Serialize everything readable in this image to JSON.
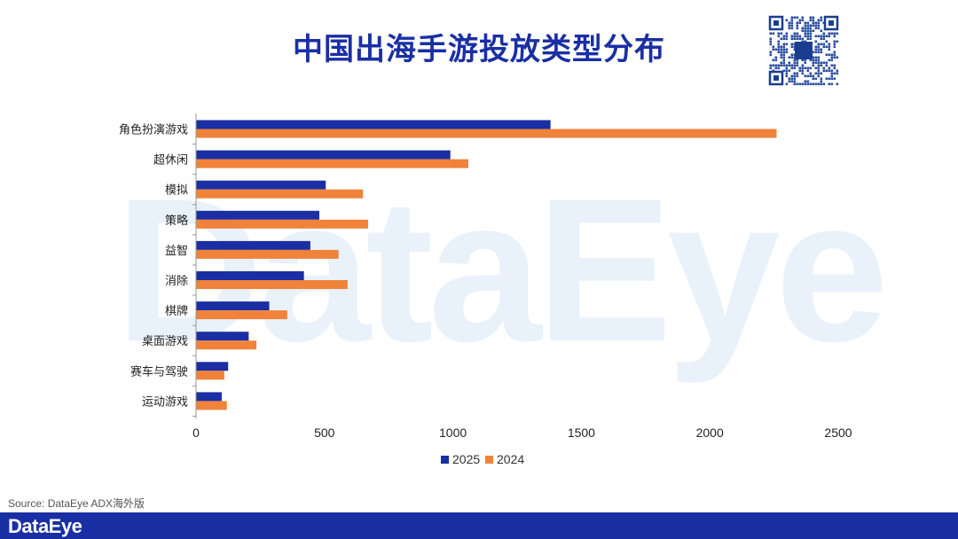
{
  "page": {
    "title": "中国出海手游投放类型分布",
    "watermark": "DataEye",
    "source": "Source: DataEye ADX海外版",
    "footer_logo": "DataEye"
  },
  "colors": {
    "series_2025": "#1a2fa3",
    "series_2024": "#f0823a",
    "title": "#1a2fa3",
    "footer": "#1a2fa3"
  },
  "chart_data": {
    "type": "bar",
    "orientation": "horizontal",
    "title": "中国出海手游投放类型分布",
    "categories": [
      "角色扮演游戏",
      "超休闲",
      "模拟",
      "策略",
      "益智",
      "消除",
      "棋牌",
      "桌面游戏",
      "赛车与驾驶",
      "运动游戏"
    ],
    "series": [
      {
        "name": "2025",
        "values": [
          1380,
          990,
          505,
          480,
          445,
          420,
          285,
          205,
          125,
          100
        ]
      },
      {
        "name": "2024",
        "values": [
          2260,
          1060,
          650,
          670,
          555,
          590,
          355,
          235,
          110,
          120
        ]
      }
    ],
    "xlim": [
      0,
      2500
    ],
    "xticks": [
      0,
      500,
      1000,
      1500,
      2000,
      2500
    ],
    "grid": false,
    "legend": "bottom"
  }
}
